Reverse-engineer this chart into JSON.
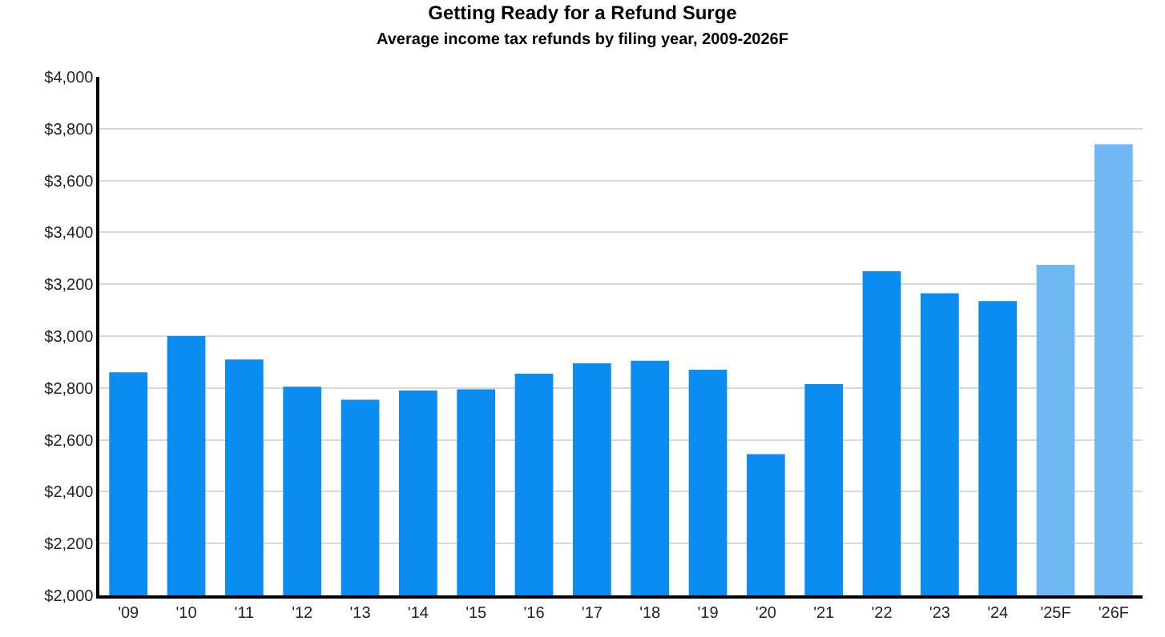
{
  "chart_data": {
    "type": "bar",
    "title": "Getting Ready for a Refund Surge",
    "subtitle": "Average income tax refunds by filing year, 2009-2026F",
    "categories": [
      "'09",
      "'10",
      "'11",
      "'12",
      "'13",
      "'14",
      "'15",
      "'16",
      "'17",
      "'18",
      "'19",
      "'20",
      "'21",
      "'22",
      "'23",
      "'24",
      "'25F",
      "'26F"
    ],
    "values": [
      2860,
      3000,
      2910,
      2805,
      2755,
      2790,
      2795,
      2855,
      2895,
      2905,
      2870,
      2545,
      2815,
      3250,
      3165,
      3135,
      3275,
      3740
    ],
    "colors": [
      "#0a8cf0",
      "#0a8cf0",
      "#0a8cf0",
      "#0a8cf0",
      "#0a8cf0",
      "#0a8cf0",
      "#0a8cf0",
      "#0a8cf0",
      "#0a8cf0",
      "#0a8cf0",
      "#0a8cf0",
      "#0a8cf0",
      "#0a8cf0",
      "#0a8cf0",
      "#0a8cf0",
      "#0a8cf0",
      "#6fb8f3",
      "#6fb8f3"
    ],
    "ylim": [
      2000,
      4000
    ],
    "yticks": [
      {
        "value": 2000,
        "label": "$2,000"
      },
      {
        "value": 2200,
        "label": "$2,200"
      },
      {
        "value": 2400,
        "label": "$2,400"
      },
      {
        "value": 2600,
        "label": "$2,600"
      },
      {
        "value": 2800,
        "label": "$2,800"
      },
      {
        "value": 3000,
        "label": "$3,000"
      },
      {
        "value": 3200,
        "label": "$3,200"
      },
      {
        "value": 3400,
        "label": "$3,400"
      },
      {
        "value": 3600,
        "label": "$3,600"
      },
      {
        "value": 3800,
        "label": "$3,800"
      },
      {
        "value": 4000,
        "label": "$4,000"
      }
    ],
    "grid": "y"
  }
}
